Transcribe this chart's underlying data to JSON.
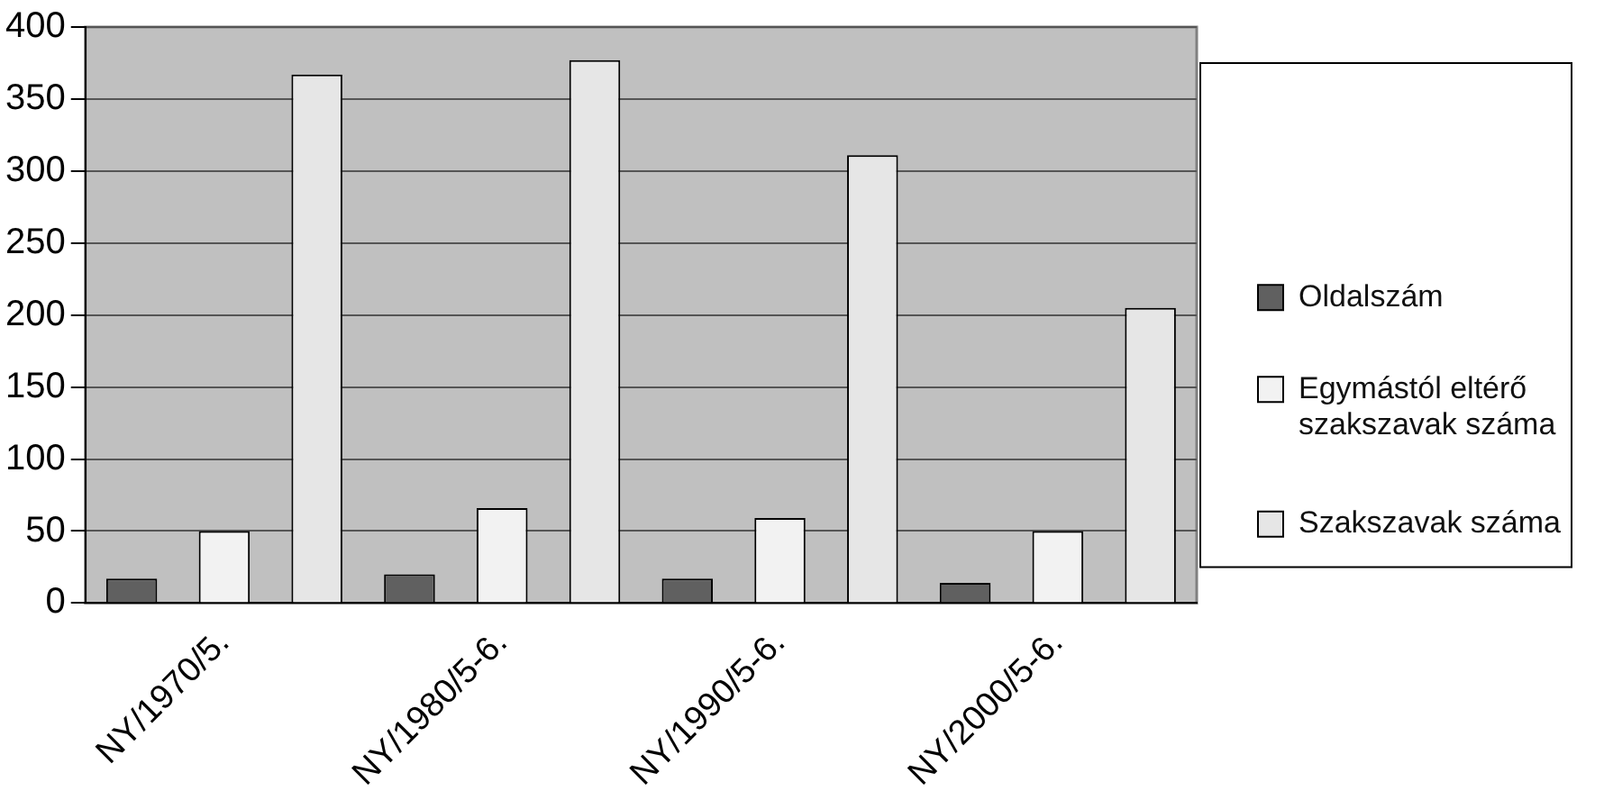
{
  "chart_data": {
    "type": "bar",
    "categories": [
      "NY/1970/5.",
      "NY/1980/5-6.",
      "NY/1990/5-6.",
      "NY/2000/5-6."
    ],
    "series": [
      {
        "name": "Oldalszám",
        "color": "#606060",
        "values": [
          17,
          20,
          17,
          14
        ]
      },
      {
        "name": "Egymástól eltérő szakszavak száma",
        "color": "#f2f2f2",
        "values": [
          50,
          66,
          59,
          50
        ]
      },
      {
        "name": "Szakszavak száma",
        "color": "#e6e6e6",
        "values": [
          367,
          377,
          311,
          205
        ]
      }
    ],
    "ylim": [
      0,
      400
    ],
    "yticks": [
      0,
      50,
      100,
      150,
      200,
      250,
      300,
      350,
      400
    ],
    "grid": "y",
    "legend": "right"
  }
}
